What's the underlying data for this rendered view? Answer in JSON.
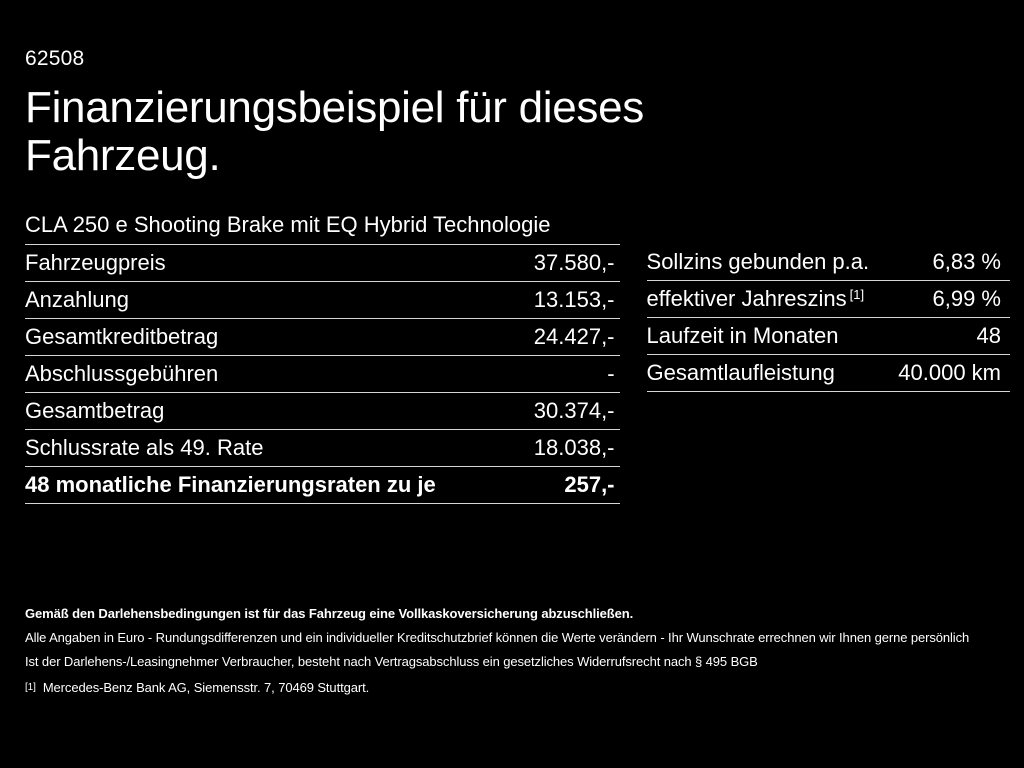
{
  "page": {
    "ref_number": "62508",
    "title_lines": [
      "Finanzierungsbeispiel für dieses",
      "Fahrzeug."
    ],
    "vehicle_name": "CLA 250 e Shooting Brake mit EQ Hybrid Technologie"
  },
  "finance_table": {
    "rows": [
      {
        "label": "Fahrzeugpreis",
        "value": "37.580,-"
      },
      {
        "label": "Anzahlung",
        "value": "13.153,-"
      },
      {
        "label": "Gesamtkreditbetrag",
        "value": "24.427,-"
      },
      {
        "label": "Abschlussgebühren",
        "value": "-"
      },
      {
        "label": "Gesamtbetrag",
        "value": "30.374,-"
      },
      {
        "label": "Schlussrate als 49. Rate",
        "value": "18.038,-"
      },
      {
        "label": "48 monatliche Finanzierungsraten zu je",
        "value": "257,-"
      }
    ]
  },
  "conditions_table": {
    "rows": [
      {
        "label": "Sollzins gebunden p.a.",
        "value": "6,83 %"
      },
      {
        "label": "effektiver Jahreszins",
        "label_sup": "[1]",
        "value": "6,99 %"
      },
      {
        "label": "Laufzeit in Monaten",
        "value": "48"
      },
      {
        "label": "Gesamtlaufleistung",
        "value": "40.000 km"
      }
    ]
  },
  "footer": {
    "bold_note": "Gemäß den Darlehensbedingungen ist für das Fahrzeug eine Vollkaskoversicherung abzuschließen.",
    "notes": [
      "Alle Angaben in Euro - Rundungsdifferenzen und ein individueller Kreditschutzbrief können die Werte verändern - Ihr Wunschrate errechnen wir Ihnen gerne persönlich",
      "Ist der Darlehens-/Leasingnehmer Verbraucher, besteht nach Vertragsabschluss ein gesetzliches Widerrufsrecht nach § 495 BGB"
    ],
    "footnote_marker": "[1]",
    "footnote_text": "Mercedes-Benz Bank AG, Siemensstr. 7, 70469 Stuttgart."
  },
  "colors": {
    "background": "#000000",
    "text": "#ffffff",
    "divider": "#d6d6d6"
  }
}
